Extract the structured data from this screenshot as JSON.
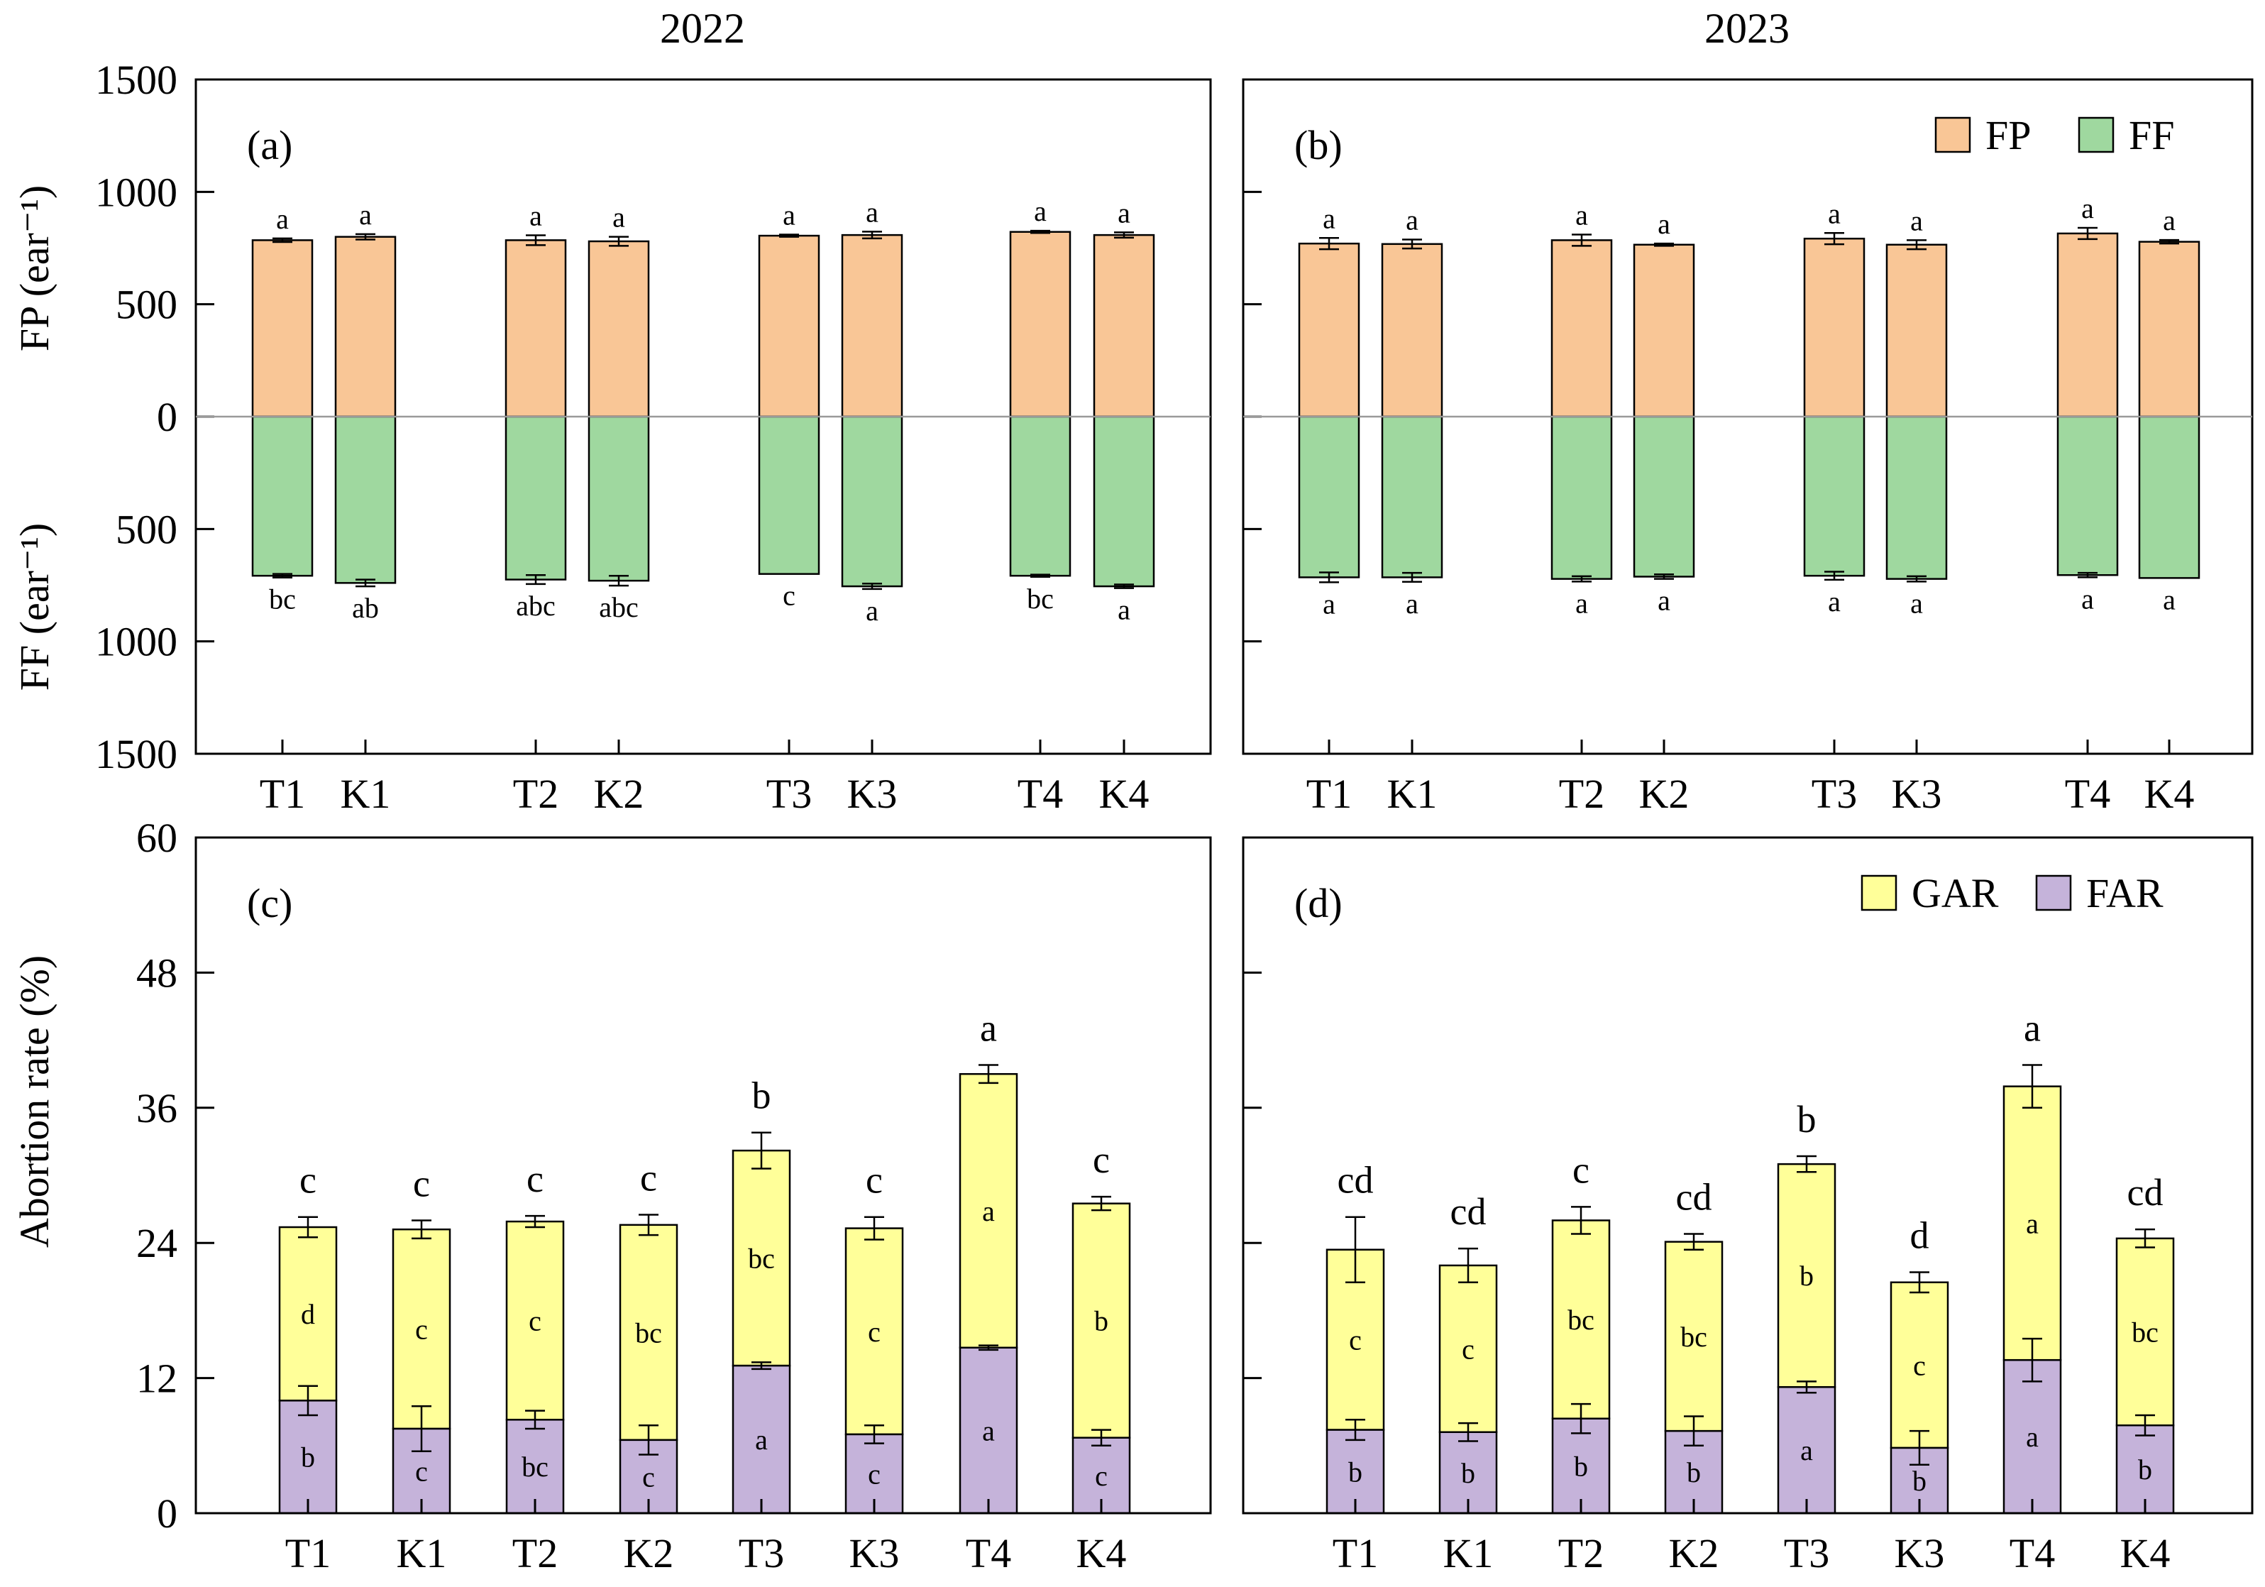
{
  "colors": {
    "FP": "#f9c696",
    "FF": "#9fd89f",
    "GAR": "#ffff99",
    "FAR": "#c5b3da",
    "zero_line": "#9a9a9a"
  },
  "year_titles": [
    "2022",
    "2023"
  ],
  "top_axis": {
    "ylabel_upper": "FP (ear⁻¹)",
    "ylabel_lower": "FF (ear⁻¹)",
    "ticks": [
      {
        "value": 1500,
        "label": "1500"
      },
      {
        "value": 1000,
        "label": "1000"
      },
      {
        "value": 500,
        "label": "500"
      },
      {
        "value": 0,
        "label": "0"
      },
      {
        "value": -500,
        "label": "500"
      },
      {
        "value": -1000,
        "label": "1000"
      },
      {
        "value": -1500,
        "label": "1500"
      }
    ]
  },
  "bottom_axis": {
    "ylabel": "Abortion rate (%)",
    "ticks": [
      "0",
      "12",
      "24",
      "36",
      "48",
      "60"
    ]
  },
  "chart_data": [
    {
      "id": "a",
      "panel_label": "(a)",
      "type": "bar",
      "subtype": "diverging-stacked",
      "year": "2022",
      "ylim": [
        -1500,
        1500
      ],
      "categories": [
        "T1",
        "K1",
        "T2",
        "K2",
        "T3",
        "K3",
        "T4",
        "K4"
      ],
      "series": [
        {
          "name": "FP",
          "direction": "up",
          "values": [
            785,
            800,
            785,
            780,
            805,
            808,
            822,
            808
          ],
          "errors": [
            8,
            12,
            22,
            20,
            5,
            15,
            5,
            12
          ],
          "letters": [
            "a",
            "a",
            "a",
            "a",
            "a",
            "a",
            "a",
            "a"
          ]
        },
        {
          "name": "FF",
          "direction": "down",
          "values": [
            708,
            740,
            725,
            730,
            700,
            755,
            708,
            755
          ],
          "errors": [
            8,
            15,
            20,
            22,
            0,
            12,
            5,
            8
          ],
          "letters": [
            "bc",
            "ab",
            "abc",
            "abc",
            "c",
            "a",
            "bc",
            "a"
          ]
        }
      ],
      "legend": []
    },
    {
      "id": "b",
      "panel_label": "(b)",
      "type": "bar",
      "subtype": "diverging-stacked",
      "year": "2023",
      "ylim": [
        -1500,
        1500
      ],
      "categories": [
        "T1",
        "K1",
        "T2",
        "K2",
        "T3",
        "K3",
        "T4",
        "K4"
      ],
      "series": [
        {
          "name": "FP",
          "direction": "up",
          "values": [
            770,
            768,
            785,
            765,
            792,
            765,
            815,
            778
          ],
          "errors": [
            25,
            20,
            25,
            5,
            25,
            20,
            25,
            8
          ],
          "letters": [
            "a",
            "a",
            "a",
            "a",
            "a",
            "a",
            "a",
            "a"
          ]
        },
        {
          "name": "FF",
          "direction": "down",
          "values": [
            715,
            715,
            722,
            712,
            708,
            722,
            705,
            718
          ],
          "errors": [
            22,
            20,
            12,
            10,
            18,
            12,
            10,
            0
          ],
          "letters": [
            "a",
            "a",
            "a",
            "a",
            "a",
            "a",
            "a",
            "a"
          ]
        }
      ],
      "legend": [
        "FP",
        "FF"
      ]
    },
    {
      "id": "c",
      "panel_label": "(c)",
      "type": "bar",
      "subtype": "stacked",
      "year": "2022",
      "ylim": [
        0,
        60
      ],
      "ylabel": "Abortion rate (%)",
      "categories": [
        "T1",
        "K1",
        "T2",
        "K2",
        "T3",
        "K3",
        "T4",
        "K4"
      ],
      "series": [
        {
          "name": "FAR",
          "values": [
            10.0,
            7.5,
            8.3,
            6.5,
            13.1,
            7.0,
            14.7,
            6.7
          ],
          "errors": [
            1.3,
            2.0,
            0.8,
            1.3,
            0.3,
            0.8,
            0.2,
            0.7
          ],
          "letters": [
            "b",
            "c",
            "bc",
            "c",
            "a",
            "c",
            "a",
            "c"
          ]
        },
        {
          "name": "GAR",
          "values": [
            15.4,
            17.7,
            17.6,
            19.1,
            19.1,
            18.3,
            24.3,
            20.8
          ],
          "errors": [
            0.9,
            0.8,
            0.5,
            0.9,
            1.6,
            1.0,
            0.8,
            0.6
          ],
          "letters": [
            "d",
            "c",
            "c",
            "bc",
            "bc",
            "c",
            "a",
            "b"
          ]
        }
      ],
      "total_letters": [
        "c",
        "c",
        "c",
        "c",
        "b",
        "c",
        "a",
        "c"
      ],
      "legend": []
    },
    {
      "id": "d",
      "panel_label": "(d)",
      "type": "bar",
      "subtype": "stacked",
      "year": "2023",
      "ylim": [
        0,
        60
      ],
      "categories": [
        "T1",
        "K1",
        "T2",
        "K2",
        "T3",
        "K3",
        "T4",
        "K4"
      ],
      "series": [
        {
          "name": "FAR",
          "values": [
            7.4,
            7.2,
            8.4,
            7.3,
            11.2,
            5.8,
            13.6,
            7.8
          ],
          "errors": [
            0.9,
            0.8,
            1.3,
            1.3,
            0.5,
            1.5,
            1.9,
            0.9
          ],
          "letters": [
            "b",
            "b",
            "b",
            "b",
            "a",
            "b",
            "a",
            "b"
          ]
        },
        {
          "name": "GAR",
          "values": [
            16.0,
            14.8,
            17.6,
            16.8,
            19.8,
            14.7,
            24.3,
            16.6
          ],
          "errors": [
            2.9,
            1.5,
            1.2,
            0.7,
            0.7,
            0.9,
            1.9,
            0.8
          ],
          "letters": [
            "c",
            "c",
            "bc",
            "bc",
            "b",
            "c",
            "a",
            "bc"
          ]
        }
      ],
      "total_letters": [
        "cd",
        "cd",
        "c",
        "cd",
        "b",
        "d",
        "a",
        "cd"
      ],
      "legend": [
        "GAR",
        "FAR"
      ]
    }
  ]
}
